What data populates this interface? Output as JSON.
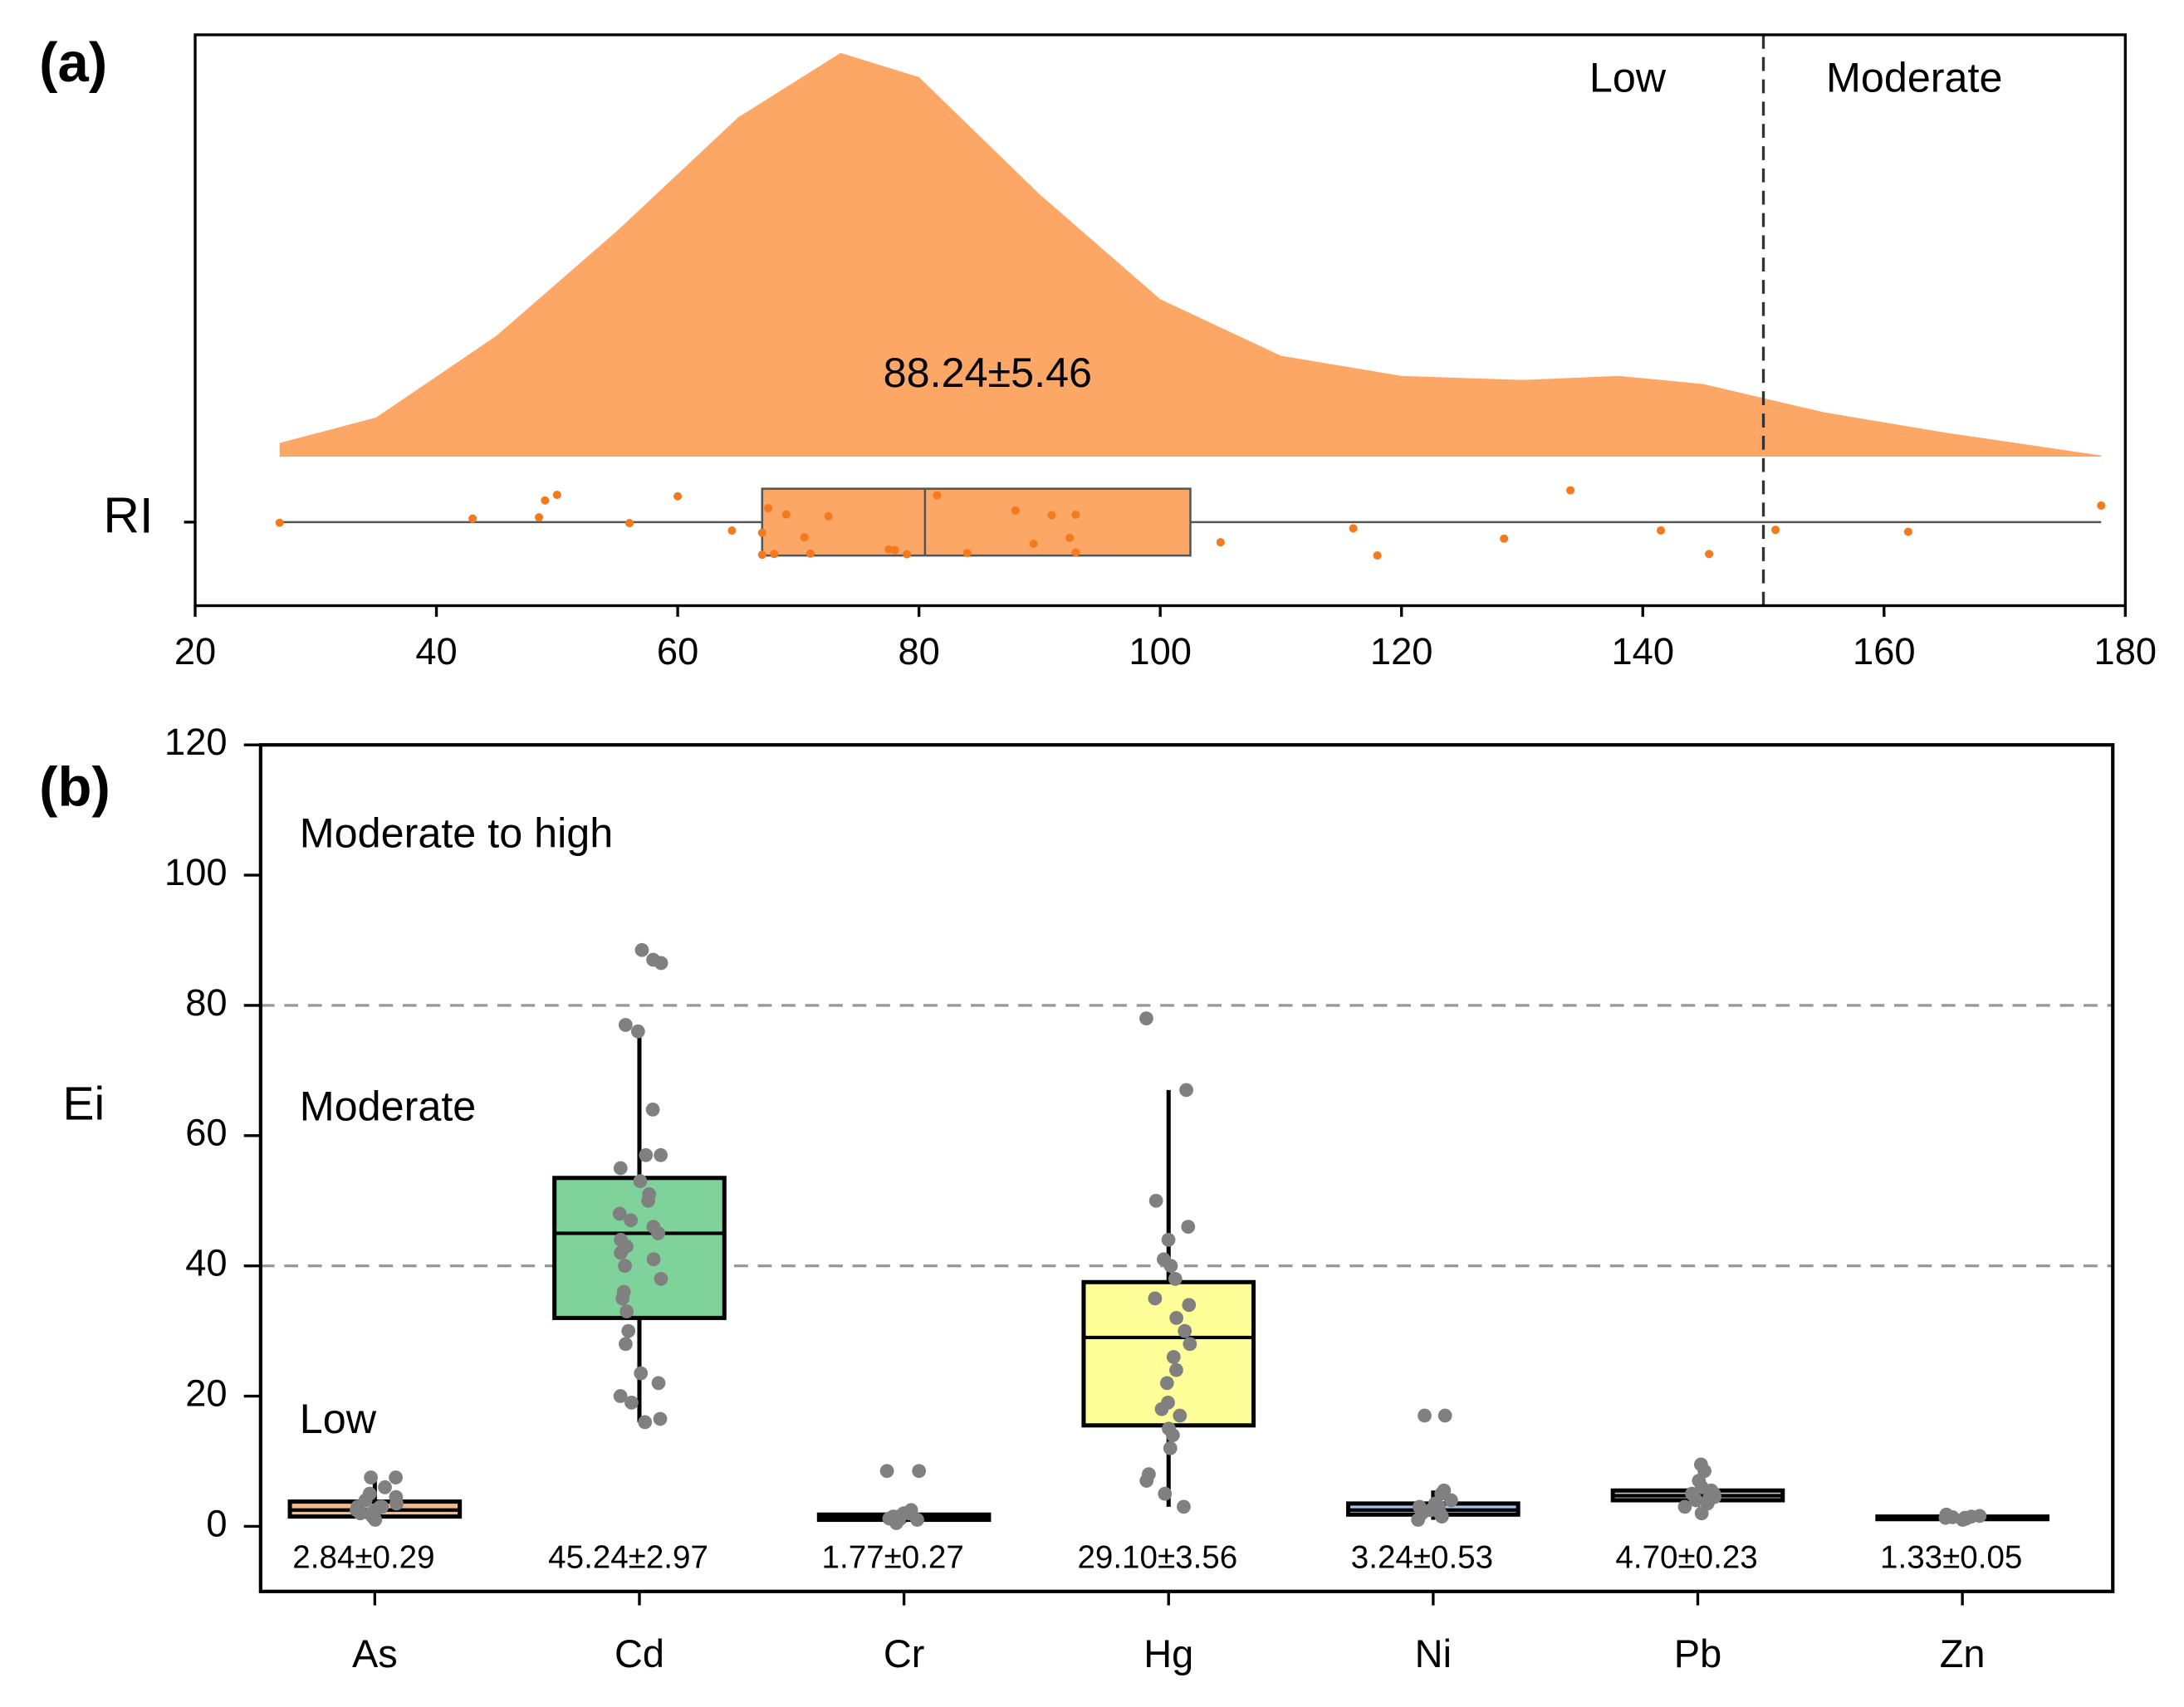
{
  "chart_data": [
    {
      "type": "raincloud",
      "panel_label": "(a)",
      "category": "RI",
      "xlim": [
        20,
        180
      ],
      "xticks": [
        20,
        40,
        60,
        80,
        100,
        120,
        140,
        160,
        180
      ],
      "color": "#fda766",
      "point_color": "#f47a1e",
      "density": {
        "x": [
          27,
          35,
          45,
          55,
          65,
          73.5,
          80,
          90,
          100,
          110,
          120,
          130,
          138,
          145,
          155,
          165,
          178
        ],
        "y": [
          3.4,
          9.7,
          30,
          56,
          84,
          100,
          94,
          65,
          39,
          25,
          20,
          19,
          20,
          18,
          11,
          6,
          0.3
        ]
      },
      "box": {
        "whisker_low": 27,
        "q1": 67,
        "median": 80.5,
        "q3": 102.5,
        "whisker_high": 178
      },
      "points": [
        27,
        43,
        48.5,
        49,
        50,
        56,
        60,
        64.5,
        67,
        67,
        67.5,
        68,
        69,
        70.5,
        71,
        72.5,
        77.5,
        78,
        79,
        81.5,
        84,
        88,
        89.5,
        91,
        92.5,
        93,
        93,
        105,
        116,
        118,
        128.5,
        134,
        141.5,
        145.5,
        151,
        162,
        178
      ],
      "annotation": "88.24±5.46",
      "threshold": 150,
      "zone_labels": [
        "Low",
        "Moderate"
      ]
    },
    {
      "type": "box",
      "panel_label": "(b)",
      "y_label": "Ei",
      "ylim": [
        -10,
        120
      ],
      "yticks": [
        0,
        20,
        40,
        60,
        80,
        100,
        120
      ],
      "thresholds": [
        40,
        80
      ],
      "zone_labels": [
        "Low",
        "Moderate",
        "Moderate to high"
      ],
      "point_color": "#808080",
      "series": [
        {
          "name": "As",
          "color": "#f6b98a",
          "whisker_low": 1,
          "q1": 1.5,
          "median": 2.5,
          "q3": 3.8,
          "whisker_high": 7.5,
          "label": "2.84±0.29",
          "points": [
            1,
            1.5,
            2,
            2,
            2.5,
            2.5,
            3,
            3,
            3,
            3.5,
            4,
            4.5,
            5,
            6,
            7.5,
            7.5
          ]
        },
        {
          "name": "Cd",
          "color": "#7fd39a",
          "whisker_low": 16,
          "q1": 32,
          "median": 45,
          "q3": 53.5,
          "whisker_high": 76,
          "label": "45.24±2.97",
          "points": [
            16,
            16.5,
            19,
            20,
            22,
            23.5,
            28,
            30,
            33,
            35,
            36,
            38,
            40,
            41,
            42,
            43,
            44,
            45,
            46,
            47,
            48,
            50,
            51,
            53,
            55,
            57,
            57,
            64,
            76,
            77,
            86.5,
            87,
            88.5
          ]
        },
        {
          "name": "Cr",
          "color": "#c9b3e0",
          "whisker_low": 0.5,
          "q1": 1,
          "median": 1.3,
          "q3": 1.8,
          "whisker_high": 2.5,
          "label": "1.77±0.27",
          "points": [
            0.5,
            1,
            1,
            1.2,
            1.5,
            1.5,
            2,
            2,
            2.5,
            8.5,
            8.5
          ]
        },
        {
          "name": "Hg",
          "color": "#ffff99",
          "whisker_low": 3,
          "q1": 15.5,
          "median": 29,
          "q3": 37.5,
          "whisker_high": 67,
          "label": "29.10±3.56",
          "points": [
            3,
            5,
            7,
            8,
            12,
            14,
            15,
            17,
            18,
            19,
            22,
            24,
            26,
            28,
            30,
            32,
            34,
            35,
            38,
            40,
            41,
            44,
            46,
            50,
            67,
            78
          ]
        },
        {
          "name": "Ni",
          "color": "#a9c6e8",
          "whisker_low": 1,
          "q1": 1.8,
          "median": 2.5,
          "q3": 3.5,
          "whisker_high": 5.5,
          "label": "3.24±0.53",
          "points": [
            1,
            1.5,
            2,
            2,
            2.5,
            3,
            3,
            3.5,
            4,
            5,
            5.5,
            17,
            17
          ]
        },
        {
          "name": "Pb",
          "color": "#c8c8c8",
          "whisker_low": 3,
          "q1": 4,
          "median": 4.7,
          "q3": 5.5,
          "whisker_high": 7,
          "label": "4.70±0.23",
          "points": [
            2,
            3,
            3.5,
            4,
            4.5,
            4.5,
            5,
            5,
            5.5,
            6,
            7,
            8.5,
            9.5
          ]
        },
        {
          "name": "Zn",
          "color": "#e0c0a0",
          "whisker_low": 1,
          "q1": 1.1,
          "median": 1.3,
          "q3": 1.5,
          "whisker_high": 1.8,
          "label": "1.33±0.05",
          "points": [
            1,
            1.2,
            1.3,
            1.3,
            1.4,
            1.5,
            1.6,
            1.8
          ]
        }
      ]
    }
  ]
}
